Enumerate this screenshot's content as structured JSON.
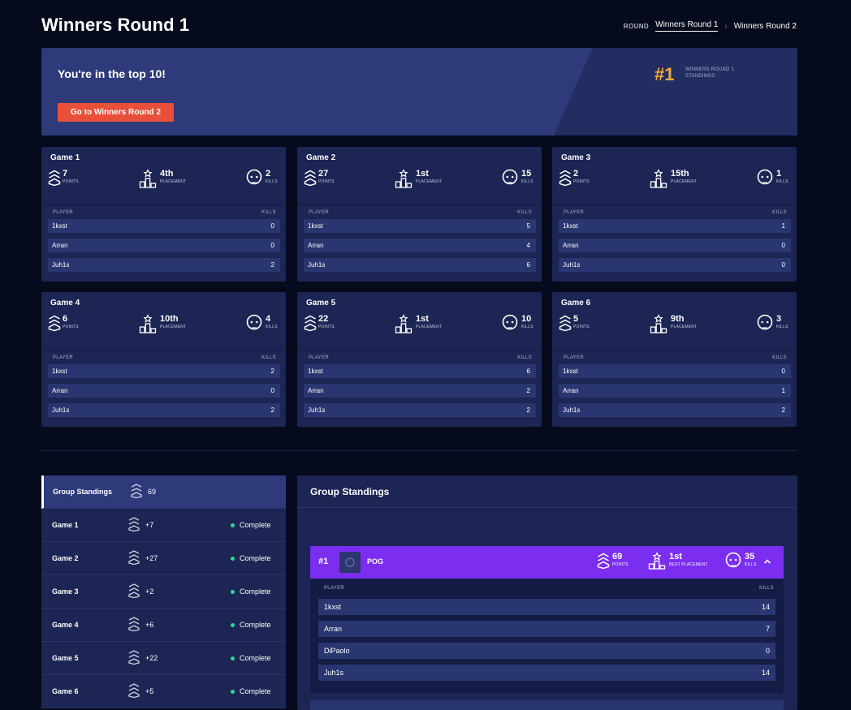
{
  "title": "Winners Round 1",
  "round_nav": {
    "label": "ROUND",
    "current": "Winners Round 1",
    "next": "Winners Round 2"
  },
  "banner": {
    "message": "You're in the top 10!",
    "button": "Go to Winners Round 2",
    "rank": "#1",
    "rank_label_1": "WINNERS ROUND 1",
    "rank_label_2": "STANDINGS"
  },
  "units": {
    "points": "POINTS",
    "placement": "PLACEMENT",
    "kills": "KILLS",
    "best_placement": "BEST PLACEMENT",
    "player": "PLAYER"
  },
  "games": [
    {
      "title": "Game 1",
      "points": "7",
      "placement": "4th",
      "kills": "2",
      "players": [
        {
          "name": "1kxst",
          "kills": "0"
        },
        {
          "name": "Arran",
          "kills": "0"
        },
        {
          "name": "Juh1s",
          "kills": "2"
        }
      ]
    },
    {
      "title": "Game 2",
      "points": "27",
      "placement": "1st",
      "kills": "15",
      "players": [
        {
          "name": "1kxst",
          "kills": "5"
        },
        {
          "name": "Arran",
          "kills": "4"
        },
        {
          "name": "Juh1s",
          "kills": "6"
        }
      ]
    },
    {
      "title": "Game 3",
      "points": "2",
      "placement": "15th",
      "kills": "1",
      "players": [
        {
          "name": "1kxst",
          "kills": "1"
        },
        {
          "name": "Arran",
          "kills": "0"
        },
        {
          "name": "Juh1s",
          "kills": "0"
        }
      ]
    },
    {
      "title": "Game 4",
      "points": "6",
      "placement": "10th",
      "kills": "4",
      "players": [
        {
          "name": "1kxst",
          "kills": "2"
        },
        {
          "name": "Arran",
          "kills": "0"
        },
        {
          "name": "Juh1s",
          "kills": "2"
        }
      ]
    },
    {
      "title": "Game 5",
      "points": "22",
      "placement": "1st",
      "kills": "10",
      "players": [
        {
          "name": "1kxst",
          "kills": "6"
        },
        {
          "name": "Arran",
          "kills": "2"
        },
        {
          "name": "Juh1s",
          "kills": "2"
        }
      ]
    },
    {
      "title": "Game 6",
      "points": "5",
      "placement": "9th",
      "kills": "3",
      "players": [
        {
          "name": "1kxst",
          "kills": "0"
        },
        {
          "name": "Arran",
          "kills": "1"
        },
        {
          "name": "Juh1s",
          "kills": "2"
        }
      ]
    }
  ],
  "sidebar": {
    "standings_label": "Group Standings",
    "standings_points": "69",
    "games": [
      {
        "name": "Game 1",
        "points": "+7",
        "status": "Complete"
      },
      {
        "name": "Game 2",
        "points": "+27",
        "status": "Complete"
      },
      {
        "name": "Game 3",
        "points": "+2",
        "status": "Complete"
      },
      {
        "name": "Game 4",
        "points": "+6",
        "status": "Complete"
      },
      {
        "name": "Game 5",
        "points": "+22",
        "status": "Complete"
      },
      {
        "name": "Game 6",
        "points": "+5",
        "status": "Complete"
      }
    ]
  },
  "standings": {
    "title": "Group Standings",
    "team": {
      "rank": "#1",
      "name": "POG",
      "points": "69",
      "best_placement": "1st",
      "kills": "35",
      "players": [
        {
          "name": "1kxst",
          "kills": "14"
        },
        {
          "name": "Arran",
          "kills": "7"
        },
        {
          "name": "DiPaolo",
          "kills": "0"
        },
        {
          "name": "Juh1s",
          "kills": "14"
        }
      ]
    }
  },
  "colors": {
    "accent": "#f5a93a",
    "button": "#e9503a",
    "team": "#7b2ef0",
    "complete": "#34d59b"
  }
}
